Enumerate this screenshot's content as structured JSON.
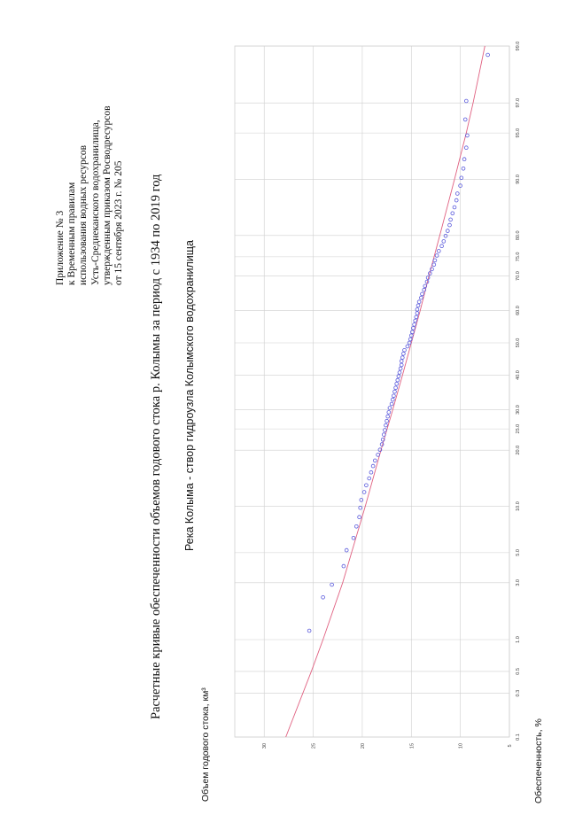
{
  "header": {
    "lines": [
      "Приложение № 3",
      "к Временным правилам",
      "использования водных ресурсов",
      "Усть-Среднеканского водохранилища,",
      "утвержденным приказом Росводресурсов",
      "от 15 сентября 2023 г. № 205"
    ]
  },
  "chart_data": {
    "type": "scatter",
    "title": "Расчетные кривые обеспеченности объемов годового стока р. Колымы за период с 1934 по 2019 год",
    "subtitle": "Река Колыма - створ гидроузла Колымского водохранилища",
    "ylabel": "Объем годового стока, км³",
    "xlabel": "Обеспеченность, %",
    "x_scale": "probability",
    "x_ticks": [
      "0.1",
      "0.3",
      "0.5",
      "1.0",
      "3.0",
      "5.0",
      "10.0",
      "20.0",
      "25.0",
      "30.0",
      "40.0",
      "50.0",
      "60.0",
      "70.0",
      "75.0",
      "80.0",
      "90.0",
      "95.0",
      "97.0",
      "99.0"
    ],
    "y_ticks": [
      "30",
      "25",
      "20",
      "15",
      "10",
      "5"
    ],
    "ylim": [
      5,
      33
    ],
    "xlim": [
      0.1,
      99.0
    ],
    "grid": true,
    "colors": {
      "points": "#5a5adc",
      "curve": "#e06080",
      "grid": "#cfcfcf"
    },
    "series": [
      {
        "kind": "points",
        "x": [
          1.2,
          2.3,
          2.9,
          4.0,
          5.2,
          6.3,
          7.5,
          8.6,
          9.8,
          10.9,
          12.1,
          13.2,
          14.4,
          15.5,
          16.7,
          17.8,
          19.0,
          20.1,
          21.3,
          22.4,
          23.6,
          24.7,
          25.9,
          27.0,
          28.2,
          29.3,
          30.5,
          31.6,
          32.8,
          33.9,
          35.1,
          36.2,
          37.4,
          38.5,
          39.7,
          40.8,
          42.0,
          43.1,
          44.3,
          45.4,
          46.6,
          47.7,
          48.9,
          50.0,
          51.1,
          52.3,
          53.4,
          54.6,
          55.7,
          56.9,
          58.0,
          59.2,
          60.3,
          61.5,
          62.6,
          63.8,
          64.9,
          66.1,
          67.2,
          68.4,
          69.5,
          70.7,
          71.8,
          73.0,
          74.1,
          75.3,
          76.4,
          77.6,
          78.7,
          79.9,
          81.0,
          82.2,
          83.3,
          84.5,
          85.6,
          86.8,
          87.9,
          89.1,
          90.2,
          91.4,
          92.5,
          93.7,
          94.8,
          96.0,
          97.1,
          98.8
        ],
        "y": [
          25.4,
          24.0,
          23.1,
          21.9,
          21.6,
          20.9,
          20.6,
          20.3,
          20.2,
          20.1,
          19.8,
          19.6,
          19.3,
          19.1,
          18.9,
          18.7,
          18.4,
          18.2,
          18.0,
          17.9,
          17.8,
          17.7,
          17.6,
          17.5,
          17.4,
          17.3,
          17.2,
          17.0,
          16.9,
          16.8,
          16.7,
          16.6,
          16.5,
          16.4,
          16.3,
          16.2,
          16.1,
          16.0,
          16.0,
          15.9,
          15.8,
          15.7,
          15.4,
          15.2,
          15.1,
          15.0,
          14.9,
          14.8,
          14.7,
          14.6,
          14.5,
          14.4,
          14.4,
          14.3,
          14.2,
          14.0,
          13.9,
          13.7,
          13.6,
          13.4,
          13.3,
          13.1,
          12.9,
          12.7,
          12.6,
          12.4,
          12.2,
          11.9,
          11.7,
          11.5,
          11.3,
          11.1,
          11.0,
          10.8,
          10.6,
          10.4,
          10.3,
          10.0,
          9.9,
          9.7,
          9.6,
          9.4,
          9.3,
          9.5,
          9.4,
          7.2
        ]
      },
      {
        "kind": "curve",
        "x": [
          0.1,
          0.5,
          1.0,
          3.0,
          5.0,
          10.0,
          20.0,
          30.0,
          40.0,
          50.0,
          60.0,
          70.0,
          80.0,
          90.0,
          95.0,
          97.0,
          99.0
        ],
        "y": [
          27.8,
          25.2,
          24.0,
          22.0,
          21.1,
          19.7,
          18.1,
          16.9,
          15.9,
          15.0,
          14.1,
          13.2,
          12.1,
          10.6,
          9.4,
          8.7,
          7.5
        ]
      }
    ]
  }
}
